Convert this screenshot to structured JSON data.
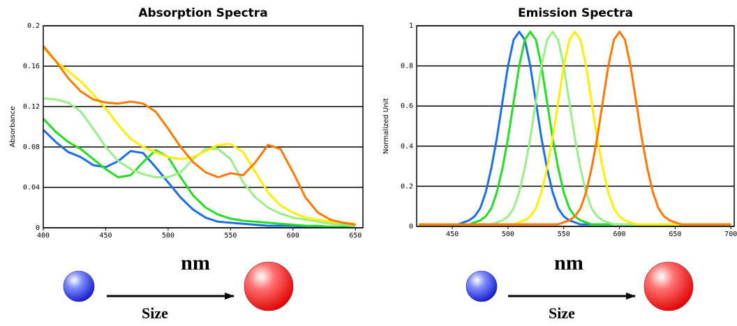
{
  "chart_data": [
    {
      "type": "line",
      "title": "Absorption Spectra",
      "y_label": "Absorbance",
      "x_label": "nm",
      "size_label": "Size",
      "x": [
        400,
        410,
        420,
        430,
        440,
        450,
        460,
        470,
        480,
        490,
        500,
        510,
        520,
        530,
        540,
        550,
        560,
        570,
        580,
        590,
        600,
        610,
        620,
        630,
        640,
        650
      ],
      "xlim": [
        400,
        656
      ],
      "xticks": [
        400,
        450,
        500,
        550,
        600,
        650
      ],
      "ylim": [
        0,
        0.2
      ],
      "yticks": [
        0,
        0.04,
        0.08,
        0.12,
        0.16,
        0.2
      ],
      "grid": true,
      "series": [
        {
          "color": "#1a6fe6",
          "values": [
            0.097,
            0.085,
            0.075,
            0.07,
            0.062,
            0.06,
            0.066,
            0.076,
            0.074,
            0.06,
            0.045,
            0.03,
            0.018,
            0.01,
            0.006,
            0.005,
            0.004,
            0.003,
            0.002,
            0.002,
            0.002,
            0.001,
            0.001,
            0.001,
            0.001,
            0.001
          ]
        },
        {
          "color": "#22dd22",
          "values": [
            0.108,
            0.095,
            0.085,
            0.078,
            0.068,
            0.058,
            0.05,
            0.052,
            0.065,
            0.077,
            0.07,
            0.05,
            0.032,
            0.02,
            0.013,
            0.009,
            0.007,
            0.006,
            0.005,
            0.004,
            0.003,
            0.002,
            0.002,
            0.001,
            0.001,
            0.001
          ]
        },
        {
          "color": "#99ee88",
          "values": [
            0.128,
            0.127,
            0.124,
            0.115,
            0.098,
            0.08,
            0.066,
            0.058,
            0.053,
            0.05,
            0.05,
            0.055,
            0.068,
            0.078,
            0.078,
            0.068,
            0.045,
            0.03,
            0.02,
            0.014,
            0.01,
            0.008,
            0.006,
            0.004,
            0.003,
            0.002
          ]
        },
        {
          "color": "#ffee00",
          "values": [
            0.178,
            0.165,
            0.155,
            0.145,
            0.132,
            0.118,
            0.102,
            0.088,
            0.08,
            0.075,
            0.07,
            0.068,
            0.07,
            0.076,
            0.082,
            0.083,
            0.075,
            0.055,
            0.035,
            0.022,
            0.015,
            0.01,
            0.008,
            0.006,
            0.005,
            0.004
          ]
        },
        {
          "color": "#ff7700",
          "values": [
            0.18,
            0.165,
            0.148,
            0.135,
            0.127,
            0.124,
            0.123,
            0.125,
            0.123,
            0.115,
            0.098,
            0.08,
            0.065,
            0.055,
            0.05,
            0.054,
            0.052,
            0.065,
            0.082,
            0.078,
            0.055,
            0.03,
            0.015,
            0.008,
            0.005,
            0.003
          ]
        }
      ]
    },
    {
      "type": "line",
      "title": "Emission Spectra",
      "y_label": "Normalized Unit",
      "x_label": "nm",
      "size_label": "Size",
      "x": [
        420,
        425,
        430,
        435,
        440,
        445,
        450,
        455,
        460,
        465,
        470,
        475,
        480,
        485,
        490,
        495,
        500,
        505,
        510,
        515,
        520,
        525,
        530,
        535,
        540,
        545,
        550,
        555,
        560,
        565,
        570,
        575,
        580,
        585,
        590,
        595,
        600,
        605,
        610,
        615,
        620,
        625,
        630,
        635,
        640,
        645,
        650,
        655,
        660,
        665,
        670,
        675,
        680,
        685,
        690,
        695,
        700
      ],
      "xlim": [
        418,
        703
      ],
      "xticks": [
        450,
        500,
        550,
        600,
        650,
        700
      ],
      "ylim": [
        0,
        1
      ],
      "yticks": [
        0,
        0.2,
        0.4,
        0.6,
        0.8,
        1
      ],
      "grid": true,
      "series": [
        {
          "color": "#1a6fe6",
          "values": [
            0.01,
            0.01,
            0.01,
            0.01,
            0.01,
            0.01,
            0.01,
            0.01,
            0.02,
            0.03,
            0.05,
            0.09,
            0.17,
            0.29,
            0.44,
            0.62,
            0.8,
            0.93,
            0.97,
            0.93,
            0.8,
            0.62,
            0.44,
            0.29,
            0.17,
            0.09,
            0.05,
            0.03,
            0.02,
            0.01,
            0.01,
            0.01,
            0.01,
            0.01,
            0.01,
            0.01,
            0.01,
            0.01,
            0.01,
            0.01,
            0.01,
            0.01,
            0.01,
            0.01,
            0.01,
            0.01,
            0.01,
            0.01,
            0.01,
            0.01,
            0.01,
            0.01,
            0.01,
            0.01,
            0.01,
            0.01,
            0.01
          ]
        },
        {
          "color": "#22dd22",
          "values": [
            0.01,
            0.01,
            0.01,
            0.01,
            0.01,
            0.01,
            0.01,
            0.01,
            0.01,
            0.01,
            0.02,
            0.03,
            0.05,
            0.09,
            0.17,
            0.29,
            0.44,
            0.62,
            0.8,
            0.93,
            0.97,
            0.93,
            0.8,
            0.62,
            0.44,
            0.29,
            0.17,
            0.09,
            0.05,
            0.03,
            0.02,
            0.01,
            0.01,
            0.01,
            0.01,
            0.01,
            0.01,
            0.01,
            0.01,
            0.01,
            0.01,
            0.01,
            0.01,
            0.01,
            0.01,
            0.01,
            0.01,
            0.01,
            0.01,
            0.01,
            0.01,
            0.01,
            0.01,
            0.01,
            0.01,
            0.01,
            0.01
          ]
        },
        {
          "color": "#99ee88",
          "values": [
            0.01,
            0.01,
            0.01,
            0.01,
            0.01,
            0.01,
            0.01,
            0.01,
            0.01,
            0.01,
            0.01,
            0.01,
            0.01,
            0.01,
            0.02,
            0.03,
            0.05,
            0.09,
            0.17,
            0.29,
            0.44,
            0.62,
            0.8,
            0.93,
            0.97,
            0.93,
            0.8,
            0.62,
            0.44,
            0.29,
            0.17,
            0.09,
            0.05,
            0.03,
            0.02,
            0.01,
            0.01,
            0.01,
            0.01,
            0.01,
            0.01,
            0.01,
            0.01,
            0.01,
            0.01,
            0.01,
            0.01,
            0.01,
            0.01,
            0.01,
            0.01,
            0.01,
            0.01,
            0.01,
            0.01,
            0.01,
            0.01
          ]
        },
        {
          "color": "#ffee00",
          "values": [
            0.01,
            0.01,
            0.01,
            0.01,
            0.01,
            0.01,
            0.01,
            0.01,
            0.01,
            0.01,
            0.01,
            0.01,
            0.01,
            0.01,
            0.01,
            0.01,
            0.01,
            0.01,
            0.02,
            0.03,
            0.05,
            0.09,
            0.17,
            0.29,
            0.44,
            0.62,
            0.8,
            0.93,
            0.97,
            0.93,
            0.8,
            0.62,
            0.44,
            0.29,
            0.17,
            0.09,
            0.05,
            0.03,
            0.02,
            0.01,
            0.01,
            0.01,
            0.01,
            0.01,
            0.01,
            0.01,
            0.01,
            0.01,
            0.01,
            0.01,
            0.01,
            0.01,
            0.01,
            0.01,
            0.01,
            0.01,
            0.01
          ]
        },
        {
          "color": "#ff7700",
          "values": [
            0.01,
            0.01,
            0.01,
            0.01,
            0.01,
            0.01,
            0.01,
            0.01,
            0.01,
            0.01,
            0.01,
            0.01,
            0.01,
            0.01,
            0.01,
            0.01,
            0.01,
            0.01,
            0.01,
            0.01,
            0.01,
            0.01,
            0.01,
            0.01,
            0.01,
            0.01,
            0.02,
            0.03,
            0.05,
            0.09,
            0.17,
            0.29,
            0.44,
            0.62,
            0.8,
            0.93,
            0.97,
            0.93,
            0.8,
            0.62,
            0.44,
            0.29,
            0.17,
            0.09,
            0.05,
            0.03,
            0.02,
            0.01,
            0.01,
            0.01,
            0.01,
            0.01,
            0.01,
            0.01,
            0.01,
            0.01,
            0.01
          ]
        }
      ]
    }
  ]
}
